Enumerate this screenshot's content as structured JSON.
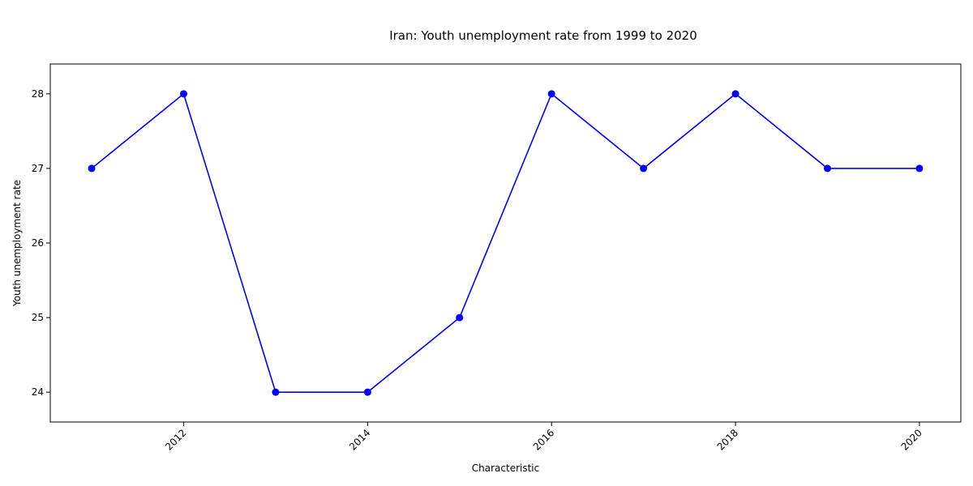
{
  "chart_data": {
    "type": "line",
    "title": "Iran: Youth unemployment rate from 1999 to 2020",
    "xlabel": "Characteristic",
    "ylabel": "Youth unemployment rate",
    "x": [
      2011,
      2012,
      2013,
      2014,
      2015,
      2016,
      2017,
      2018,
      2019,
      2020
    ],
    "series": [
      {
        "values": [
          27,
          28,
          24,
          24,
          25,
          28,
          27,
          28,
          27,
          27
        ]
      }
    ],
    "xticks": [
      2012,
      2014,
      2016,
      2018,
      2020
    ],
    "yticks": [
      24,
      25,
      26,
      27,
      28
    ],
    "xlim": [
      2010.55,
      2020.45
    ],
    "ylim": [
      23.6,
      28.4
    ],
    "line_color": "#0000ff",
    "grid": false,
    "legend": "none"
  }
}
